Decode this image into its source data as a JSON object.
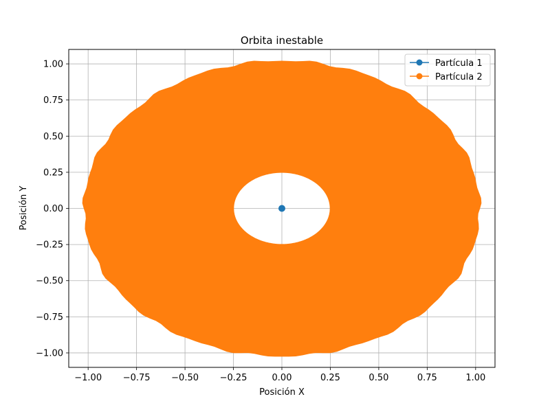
{
  "chart_data": {
    "type": "scatter",
    "title": "Orbita inestable",
    "xlabel": "Posición X",
    "ylabel": "Posición Y",
    "xlim": [
      -1.1,
      1.1
    ],
    "ylim": [
      -1.1,
      1.1
    ],
    "grid": true,
    "legend_position": "top-right",
    "x_ticks": [
      -1.0,
      -0.75,
      -0.5,
      -0.25,
      0.0,
      0.25,
      0.5,
      0.75,
      1.0
    ],
    "x_tick_labels": [
      "−1.00",
      "−0.75",
      "−0.50",
      "−0.25",
      "0.00",
      "0.25",
      "0.50",
      "0.75",
      "1.00"
    ],
    "y_ticks": [
      -1.0,
      -0.75,
      -0.5,
      -0.25,
      0.0,
      0.25,
      0.5,
      0.75,
      1.0
    ],
    "y_tick_labels": [
      "−1.00",
      "−0.75",
      "−0.50",
      "−0.25",
      "0.00",
      "0.25",
      "0.50",
      "0.75",
      "1.00"
    ],
    "series": [
      {
        "name": "Partícula 1",
        "color": "#1f77b4",
        "marker": "circle",
        "points": [
          [
            0.0,
            0.0
          ]
        ]
      },
      {
        "name": "Partícula 2",
        "color": "#ff7f0e",
        "marker": "circle",
        "shape": "filled annulus traced by the orbit",
        "inner_radius": {
          "x": 0.25,
          "y": 0.25
        },
        "outer_radius": {
          "x": 1.02,
          "y": 1.02
        },
        "center": [
          0.0,
          0.0
        ]
      }
    ]
  }
}
